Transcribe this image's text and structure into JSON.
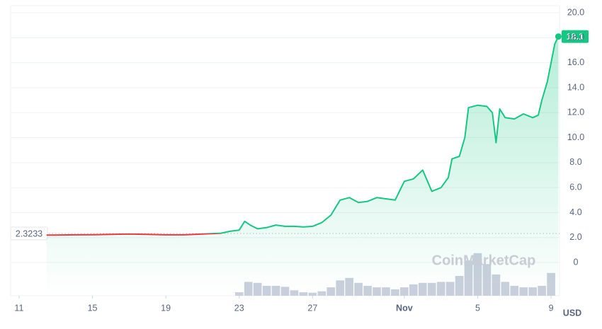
{
  "chart_data": {
    "type": "line",
    "color": "#16c784",
    "down_color": "#ea3943",
    "volume_color": "#c9cfdc",
    "grid": true,
    "reference": {
      "value": 2.3233
    },
    "unit": "USD",
    "watermark": "CoinMarketCap",
    "xlim": [
      10.54,
      40.46
    ],
    "xticks": [
      11,
      15,
      19,
      23,
      27,
      {
        "value": 32,
        "label": "Nov"
      },
      {
        "value": 36,
        "label": "5"
      },
      {
        "value": 40,
        "label": "9"
      }
    ],
    "ylim": [
      -2.66,
      20.57
    ],
    "yticks": [
      0,
      {
        "value": 2,
        "label": "2.0"
      },
      {
        "value": 4,
        "label": "4.0"
      },
      {
        "value": 6,
        "label": "6.0"
      },
      {
        "value": 8,
        "label": "8.0"
      },
      {
        "value": 10,
        "label": "10.0"
      },
      {
        "value": 12,
        "label": "12.0"
      },
      {
        "value": 14,
        "label": "14.0"
      },
      {
        "value": 16,
        "label": "16.0"
      },
      {
        "value": 18,
        "label": "18.0"
      },
      {
        "value": 20,
        "label": "20.0"
      }
    ],
    "x": [
      12.5,
      13,
      14,
      15,
      16,
      17,
      18,
      19,
      20,
      21,
      22,
      22.5,
      23,
      23.3,
      23.6,
      24,
      24.5,
      25,
      25.5,
      26,
      26.5,
      27,
      27.5,
      28,
      28.5,
      29,
      29.5,
      30,
      30.5,
      31,
      31.5,
      32,
      32.5,
      33,
      33.5,
      34,
      34.4,
      34.6,
      35,
      35.3,
      35.5,
      36,
      36.5,
      36.8,
      37,
      37.2,
      37.5,
      38,
      38.5,
      39,
      39.3,
      39.5,
      39.8,
      40,
      40.2,
      40.4
    ],
    "values": [
      2.2,
      2.2,
      2.22,
      2.23,
      2.26,
      2.28,
      2.26,
      2.22,
      2.22,
      2.28,
      2.35,
      2.5,
      2.6,
      3.3,
      3.0,
      2.7,
      2.8,
      3.0,
      2.9,
      2.9,
      2.85,
      2.9,
      3.2,
      3.8,
      5.0,
      5.2,
      4.8,
      4.9,
      5.2,
      5.1,
      5.0,
      6.5,
      6.7,
      7.4,
      5.7,
      6.0,
      6.8,
      8.3,
      8.5,
      10.0,
      12.4,
      12.6,
      12.5,
      12.0,
      9.6,
      12.3,
      11.6,
      11.5,
      11.9,
      11.6,
      11.8,
      13.0,
      14.5,
      16.0,
      17.5,
      18.1
    ],
    "volume": {
      "y2lim": [
        0,
        100
      ],
      "x": [
        23,
        23.5,
        24,
        24.5,
        25,
        25.5,
        26,
        26.5,
        27,
        27.5,
        28,
        28.5,
        29,
        29.5,
        30,
        30.5,
        31,
        31.5,
        32,
        32.5,
        33,
        33.5,
        34,
        34.5,
        35,
        35.5,
        36,
        36.5,
        37,
        37.5,
        38,
        38.5,
        39,
        39.5,
        40
      ],
      "values": [
        7,
        28,
        26,
        20,
        20,
        18,
        11,
        7,
        6,
        9,
        17,
        31,
        36,
        26,
        20,
        17,
        17,
        13,
        17,
        23,
        26,
        26,
        28,
        28,
        40,
        71,
        86,
        64,
        43,
        28,
        20,
        17,
        17,
        20,
        46
      ]
    }
  }
}
